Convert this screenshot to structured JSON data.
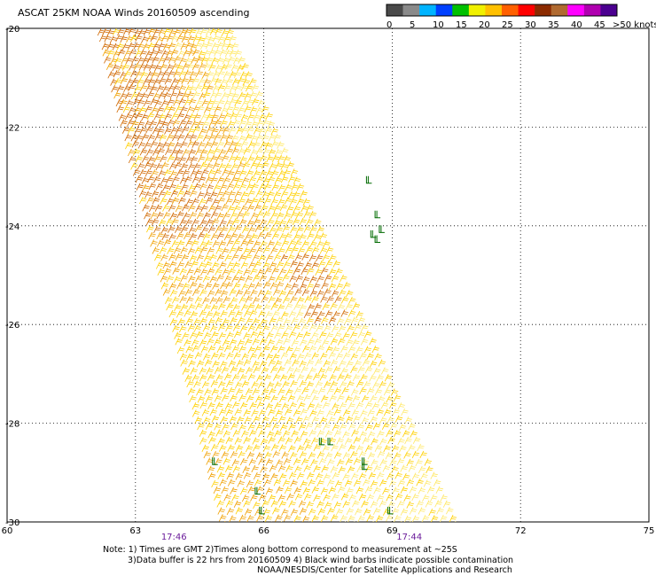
{
  "title": "ASCAT 25KM NOAA Winds 20160509 ascending",
  "colorbar": {
    "colors": [
      "#4a4a4a",
      "#8a8a8a",
      "#00b4ff",
      "#0040ff",
      "#00c000",
      "#f0f000",
      "#ffc000",
      "#ff6000",
      "#ff0000",
      "#8b2a00",
      "#b06a30",
      "#ff00ff",
      "#b000b0",
      "#4b0090"
    ],
    "labels": [
      "0",
      "5",
      "10",
      "15",
      "20",
      "25",
      "30",
      "35",
      "40",
      "45",
      ">50 knots"
    ]
  },
  "chart_data": {
    "type": "map",
    "lon_ticks": [
      "60",
      "63",
      "66",
      "69",
      "72",
      "75"
    ],
    "lat_ticks": [
      "-20",
      "-22",
      "-24",
      "-26",
      "-28",
      "-30"
    ],
    "lon_range": [
      60,
      75
    ],
    "lat_range": [
      -30,
      -20
    ],
    "grid": "dotted",
    "swath": {
      "corners": [
        [
          62.2,
          -20
        ],
        [
          65.2,
          -20
        ],
        [
          70.5,
          -30
        ],
        [
          65.1,
          -30
        ]
      ]
    },
    "time_labels": [
      {
        "text": "17:46",
        "lon": 63.9
      },
      {
        "text": "17:44",
        "lon": 69.4
      }
    ],
    "barb_colors": {
      "pale_yellow": "#ffe866",
      "yellow": "#ffd000",
      "orange": "#f0a000",
      "dark_orange": "#d06800",
      "contaminated": "#006a00"
    }
  },
  "notes": {
    "line1": "Note: 1) Times are GMT 2)Times along bottom correspond to measurement at ~25S",
    "line2": "3)Data buffer is 22 hrs from 20160509 4) Black wind barbs indicate possible contamination",
    "line3": "NOAA/NESDIS/Center for Satellite Applications and Research"
  }
}
